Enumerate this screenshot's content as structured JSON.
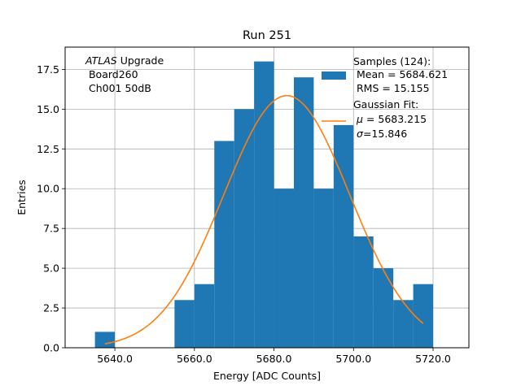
{
  "chart_data": {
    "type": "bar",
    "title": "Run 251",
    "xlabel": "Energy [ADC Counts]",
    "ylabel": "Entries",
    "xlim": [
      5627.5,
      5729
    ],
    "ylim": [
      0,
      18.9
    ],
    "xticks": [
      5640,
      5660,
      5680,
      5700,
      5720
    ],
    "xtick_labels": [
      "5640.0",
      "5660.0",
      "5680.0",
      "5700.0",
      "5720.0"
    ],
    "yticks": [
      0,
      2.5,
      5,
      7.5,
      10,
      12.5,
      15,
      17.5
    ],
    "ytick_labels": [
      "0.0",
      "2.5",
      "5.0",
      "7.5",
      "10.0",
      "12.5",
      "15.0",
      "17.5"
    ],
    "grid": true,
    "bins": [
      {
        "x0": 5635,
        "x1": 5640,
        "count": 1
      },
      {
        "x0": 5655,
        "x1": 5660,
        "count": 3
      },
      {
        "x0": 5660,
        "x1": 5665,
        "count": 4
      },
      {
        "x0": 5665,
        "x1": 5670,
        "count": 13
      },
      {
        "x0": 5670,
        "x1": 5675,
        "count": 15
      },
      {
        "x0": 5675,
        "x1": 5680,
        "count": 18
      },
      {
        "x0": 5680,
        "x1": 5685,
        "count": 10
      },
      {
        "x0": 5685,
        "x1": 5690,
        "count": 17
      },
      {
        "x0": 5690,
        "x1": 5695,
        "count": 10
      },
      {
        "x0": 5695,
        "x1": 5700,
        "count": 14
      },
      {
        "x0": 5700,
        "x1": 5705,
        "count": 7
      },
      {
        "x0": 5705,
        "x1": 5710,
        "count": 5
      },
      {
        "x0": 5710,
        "x1": 5715,
        "count": 3
      },
      {
        "x0": 5715,
        "x1": 5720,
        "count": 4
      }
    ],
    "fit": {
      "type": "gaussian",
      "mu": 5683.215,
      "sigma": 15.846,
      "amplitude": 15.85,
      "x_range": [
        5637.5,
        5717.5
      ]
    },
    "colors": {
      "bars": "#1f77b4",
      "fit": "#ff7f0e",
      "grid": "#b0b0b0"
    },
    "annotation": {
      "italic": "ATLAS",
      "line1_rest": " Upgrade",
      "line2": " Board260",
      "line3": " Ch001 50dB"
    },
    "legend": {
      "position": "top-right",
      "samples_title": "Samples (124):",
      "samples_mean": " Mean = 5684.621",
      "samples_rms": " RMS = 15.155",
      "fit_title": "Gaussian Fit:",
      "fit_mu_symbol": "μ",
      "fit_mu_value": " = 5683.215",
      "fit_sigma_symbol": "σ",
      "fit_sigma_value": "=15.846"
    }
  }
}
